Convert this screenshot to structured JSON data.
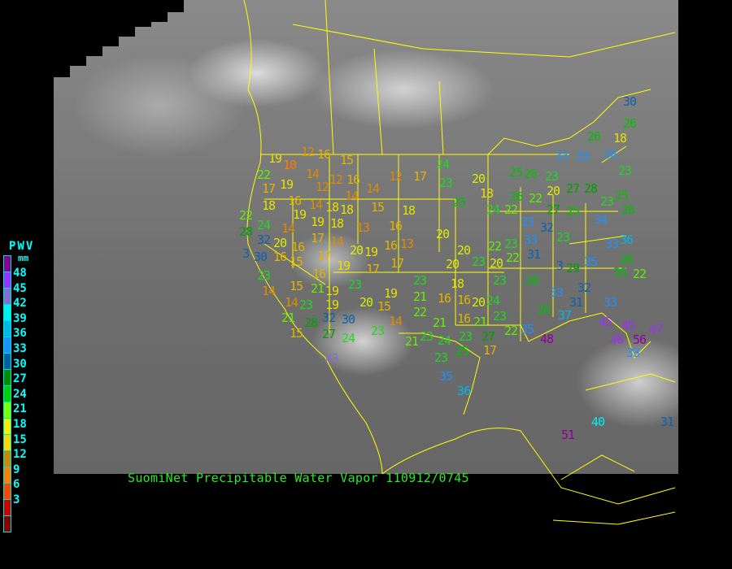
{
  "caption": "SuomiNet Precipitable Water Vapor 110912/0745",
  "legend": {
    "title": "PWV",
    "unit": "mm",
    "labels": [
      "48",
      "45",
      "42",
      "39",
      "36",
      "33",
      "30",
      "27",
      "24",
      "21",
      "18",
      "15",
      "12",
      "9",
      "6",
      "3"
    ],
    "colors": [
      "#8b008b",
      "#9b30ff",
      "#8470d0",
      "#00f0f0",
      "#00b8e8",
      "#1e90ff",
      "#005f9f",
      "#008c00",
      "#00d000",
      "#80ff00",
      "#f0f000",
      "#ffd700",
      "#cc8800",
      "#ff8000",
      "#ff4500",
      "#d00000",
      "#8b0000"
    ]
  },
  "colors": {
    "border": "#ffff00",
    "caption": "#22ee22",
    "legend_text": "#00ffff"
  },
  "stations": [
    19,
    10,
    12,
    16,
    15,
    14,
    12,
    16,
    22,
    19,
    12,
    17,
    16,
    14,
    14,
    14,
    12,
    17,
    24,
    23,
    20,
    25,
    18,
    18,
    19,
    19,
    18,
    18,
    13,
    15,
    22,
    24,
    14,
    17,
    18,
    14,
    16,
    18,
    28,
    32,
    20,
    16,
    17,
    20,
    19,
    16,
    13,
    30,
    3,
    16,
    15,
    16,
    19,
    17,
    17,
    20,
    20,
    22,
    23,
    20,
    18,
    23,
    20,
    22,
    23,
    26,
    23,
    3,
    23,
    14,
    15,
    21,
    19,
    14,
    23,
    19,
    23,
    20,
    15,
    19,
    23,
    21,
    16,
    16,
    20,
    24,
    22,
    21,
    16,
    21,
    23,
    32,
    30,
    21,
    15,
    28,
    27,
    24,
    23,
    14,
    21,
    23,
    24,
    23,
    27,
    22,
    25,
    17,
    23,
    35,
    36,
    43,
    30,
    18,
    26,
    26,
    33,
    33,
    34,
    23,
    25,
    26,
    23,
    20,
    26,
    22,
    27,
    27,
    28,
    23,
    25,
    34,
    26,
    24,
    22,
    33,
    32,
    25,
    33,
    31,
    33,
    36,
    26,
    29,
    35,
    26,
    32,
    33,
    26,
    31,
    37,
    33,
    45,
    46,
    45,
    56,
    47,
    33,
    35,
    48,
    51,
    40,
    31,
    22
  ]
}
